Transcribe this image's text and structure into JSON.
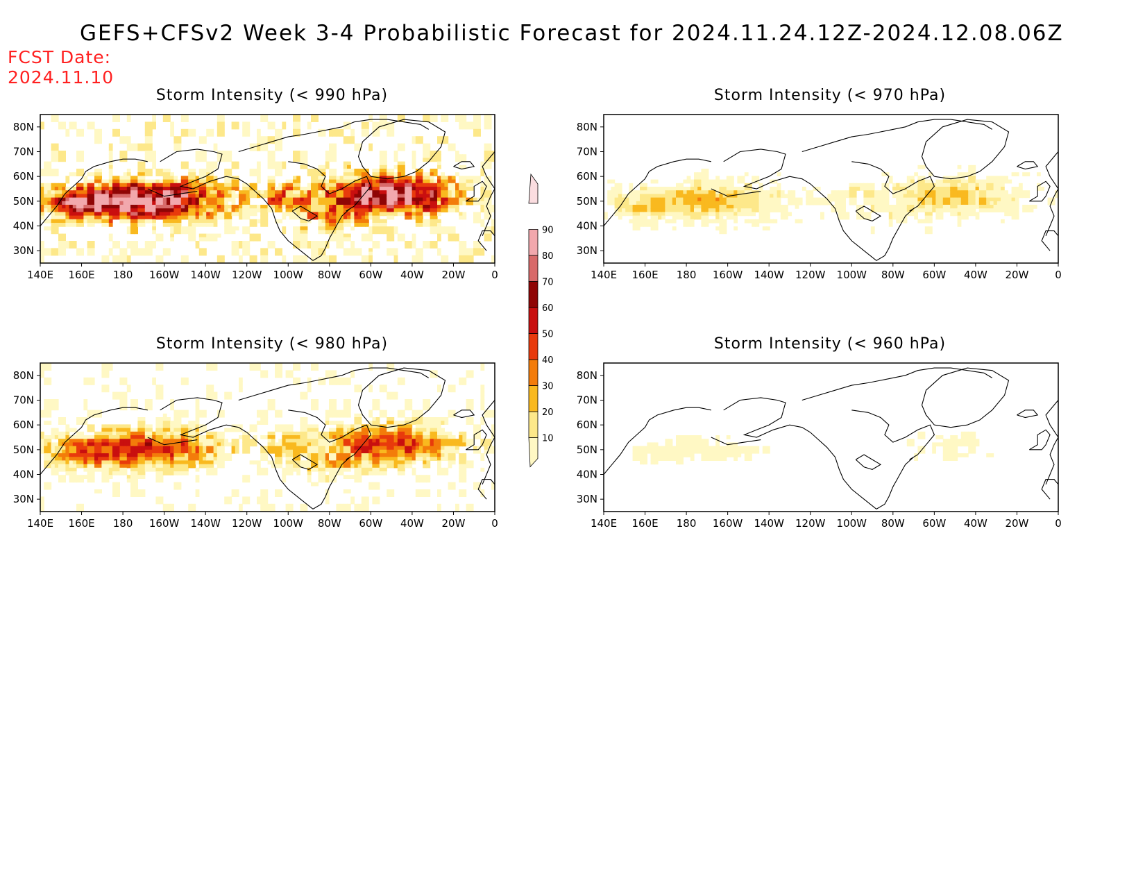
{
  "header": {
    "title": "GEFS+CFSv2 Week 3-4 Probabilistic Forecast for 2024.11.24.12Z-2024.12.08.06Z",
    "fcst_label": "FCST Date:",
    "fcst_date": "2024.11.10"
  },
  "axes": {
    "lat_ticks": [
      "80N",
      "70N",
      "60N",
      "50N",
      "40N",
      "30N"
    ],
    "lon_ticks": [
      "140E",
      "160E",
      "180",
      "160W",
      "140W",
      "120W",
      "100W",
      "80W",
      "60W",
      "40W",
      "20W",
      "0"
    ]
  },
  "panels": [
    {
      "title": "Storm Intensity (< 990 hPa)",
      "intensity": 1.0
    },
    {
      "title": "Storm Intensity (< 970 hPa)",
      "intensity": 0.35
    },
    {
      "title": "Storm Intensity (< 980 hPa)",
      "intensity": 0.65
    },
    {
      "title": "Storm Intensity (< 960 hPa)",
      "intensity": 0.14
    }
  ],
  "colorbar": {
    "levels": [
      "10",
      "20",
      "30",
      "40",
      "50",
      "60",
      "70",
      "80",
      "90"
    ],
    "colors": [
      "#fff8c4",
      "#fde88a",
      "#f9b91f",
      "#f37c0a",
      "#e83a0c",
      "#c90f0f",
      "#8f0505",
      "#d86a6a",
      "#f2a8ad",
      "#fbdde0"
    ]
  }
}
